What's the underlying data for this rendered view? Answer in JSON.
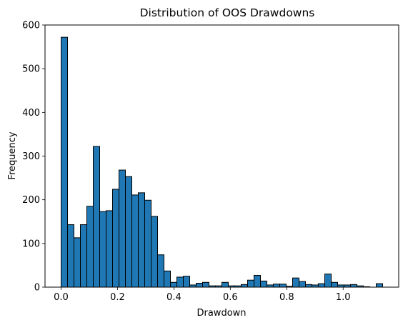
{
  "chart_data": {
    "type": "bar",
    "title": "Distribution of OOS Drawdowns",
    "xlabel": "Drawdown",
    "ylabel": "Frequency",
    "xlim": [
      -0.057,
      1.197
    ],
    "ylim": [
      0,
      600
    ],
    "x_ticks": [
      0.0,
      0.2,
      0.4,
      0.6,
      0.8,
      1.0
    ],
    "x_tick_labels": [
      "0.0",
      "0.2",
      "0.4",
      "0.6",
      "0.8",
      "1.0"
    ],
    "y_ticks": [
      0,
      100,
      200,
      300,
      400,
      500,
      600
    ],
    "y_tick_labels": [
      "0",
      "100",
      "200",
      "300",
      "400",
      "500",
      "600"
    ],
    "bin_start": 0.0,
    "bin_width": 0.0228,
    "bar_color": "#1f77b4",
    "edge_color": "#000000",
    "values": [
      572,
      143,
      113,
      143,
      185,
      322,
      173,
      175,
      224,
      268,
      253,
      211,
      216,
      199,
      162,
      74,
      37,
      11,
      23,
      25,
      5,
      9,
      11,
      3,
      3,
      11,
      3,
      3,
      6,
      16,
      27,
      14,
      5,
      7,
      7,
      2,
      21,
      13,
      6,
      5,
      8,
      30,
      11,
      5,
      5,
      6,
      3,
      1,
      0,
      8
    ],
    "grid": false,
    "legend": "none"
  }
}
